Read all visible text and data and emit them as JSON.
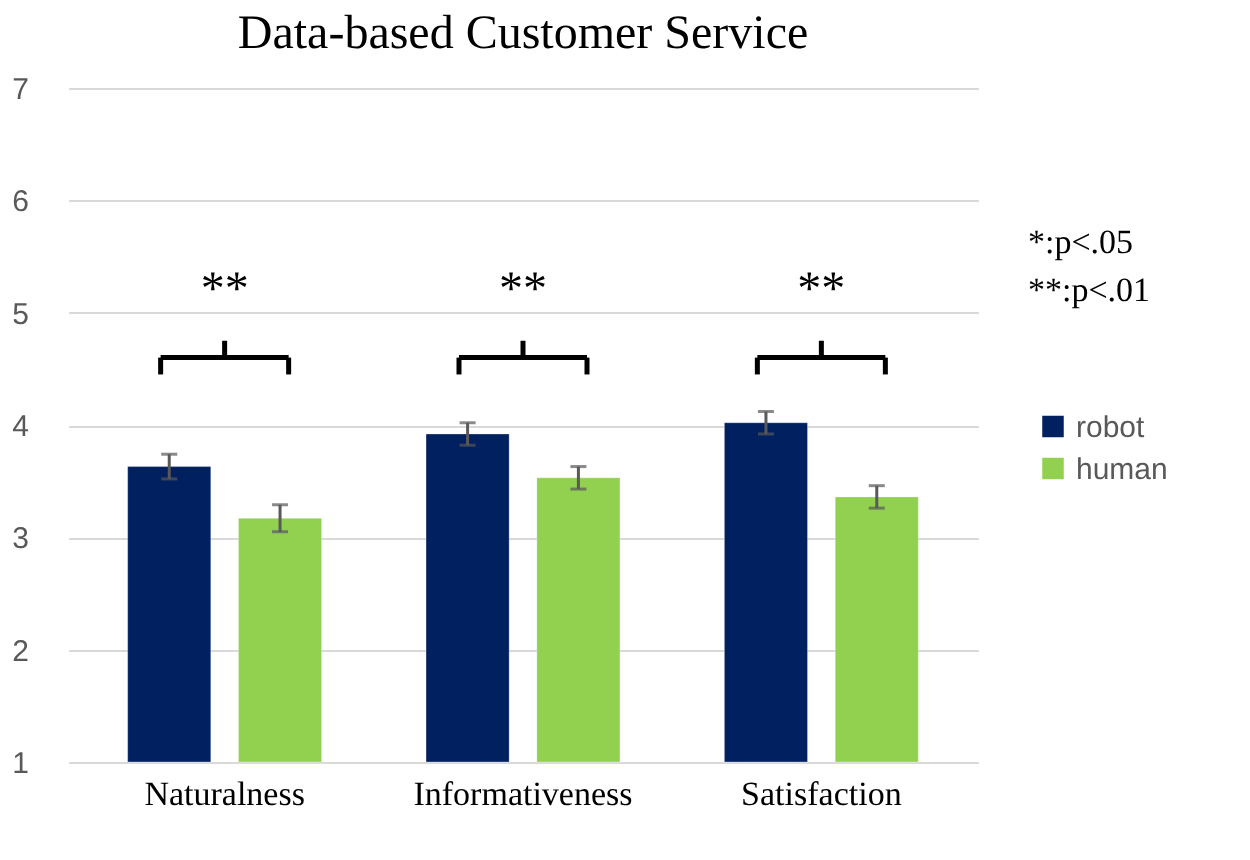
{
  "chart_data": {
    "type": "bar",
    "title": "Data-based Customer Service",
    "categories": [
      "Naturalness",
      "Informativeness",
      "Satisfaction"
    ],
    "series": [
      {
        "name": "robot",
        "color": "#002060",
        "values": [
          3.63,
          3.92,
          4.02
        ],
        "errors": [
          0.11,
          0.1,
          0.1
        ]
      },
      {
        "name": "human",
        "color": "#92d050",
        "values": [
          3.17,
          3.53,
          3.36
        ],
        "errors": [
          0.12,
          0.1,
          0.1
        ]
      }
    ],
    "ylim": [
      1,
      7
    ],
    "yticks": [
      1,
      2,
      3,
      4,
      5,
      6,
      7
    ],
    "grid": "y",
    "legend": "right",
    "annotations": [
      "**",
      "**",
      "**",
      "*:p<.05",
      "**:p<.01"
    ]
  }
}
